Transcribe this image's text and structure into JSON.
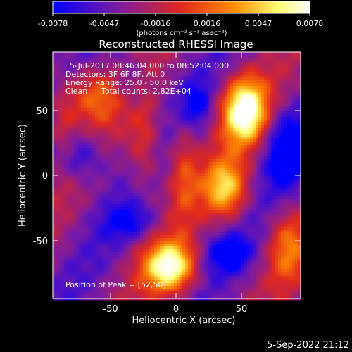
{
  "colorbar": {
    "ticks": [
      "-0.0078",
      "-0.0047",
      "-0.0016",
      "0.0016",
      "0.0047",
      "0.0078"
    ],
    "unit_label": "(photons cm⁻² s⁻¹ asec⁻²)"
  },
  "chart_data": {
    "type": "heatmap",
    "title": "Reconstructed RHESSI Image",
    "annotations": {
      "time_range": "5-Jul-2017 08:46:04.000 to 08:52:04.000",
      "detectors": "Detectors: 3F 6F 8F, Att 0",
      "energy_range": "Energy Range: 25.0 - 50.0 keV",
      "method": "Clean",
      "total_counts": "Total counts: 2.82E+04",
      "peak": "Position of Peak = [52,50]"
    },
    "xlabel": "Heliocentric X (arcsec)",
    "ylabel": "Heliocentric Y (arcsec)",
    "xlim": [
      -95,
      95
    ],
    "ylim": [
      -95,
      95
    ],
    "xticks": [
      -50,
      0,
      50
    ],
    "yticks": [
      -50,
      0,
      50
    ],
    "color_range": [
      -0.0078,
      0.0078
    ],
    "colormap": [
      "#0000ff",
      "#7a1aa3",
      "#e0281e",
      "#ff8a00",
      "#ffff70",
      "#ffffff"
    ],
    "peak": {
      "x": 52,
      "y": 50,
      "value": 0.0078
    },
    "blobs": [
      {
        "x": 52,
        "y": 50,
        "sx": 12,
        "sy": 18,
        "amp": 1.0
      },
      {
        "x": -5,
        "y": -70,
        "sx": 14,
        "sy": 14,
        "amp": 0.92
      },
      {
        "x": 38,
        "y": -10,
        "sx": 12,
        "sy": 16,
        "amp": 0.7
      },
      {
        "x": -65,
        "y": 62,
        "sx": 18,
        "sy": 16,
        "amp": 0.45
      },
      {
        "x": 85,
        "y": -55,
        "sx": 10,
        "sy": 20,
        "amp": 0.4
      },
      {
        "x": -25,
        "y": 25,
        "sx": 9,
        "sy": 28,
        "amp": 0.35
      },
      {
        "x": 5,
        "y": 5,
        "sx": 8,
        "sy": 26,
        "amp": 0.35
      },
      {
        "x": -88,
        "y": 35,
        "sx": 8,
        "sy": 20,
        "amp": 0.3
      },
      {
        "x": -75,
        "y": 15,
        "sx": 14,
        "sy": 14,
        "amp": -0.4
      },
      {
        "x": -35,
        "y": 70,
        "sx": 10,
        "sy": 16,
        "amp": -0.3
      },
      {
        "x": 85,
        "y": 20,
        "sx": 12,
        "sy": 20,
        "amp": -0.45
      },
      {
        "x": 40,
        "y": -60,
        "sx": 12,
        "sy": 10,
        "amp": -0.4
      },
      {
        "x": -35,
        "y": -35,
        "sx": 14,
        "sy": 10,
        "amp": -0.3
      },
      {
        "x": 15,
        "y": 55,
        "sx": 8,
        "sy": 12,
        "amp": -0.3
      }
    ]
  },
  "footer": {
    "timestamp": "5-Sep-2022 21:12"
  }
}
